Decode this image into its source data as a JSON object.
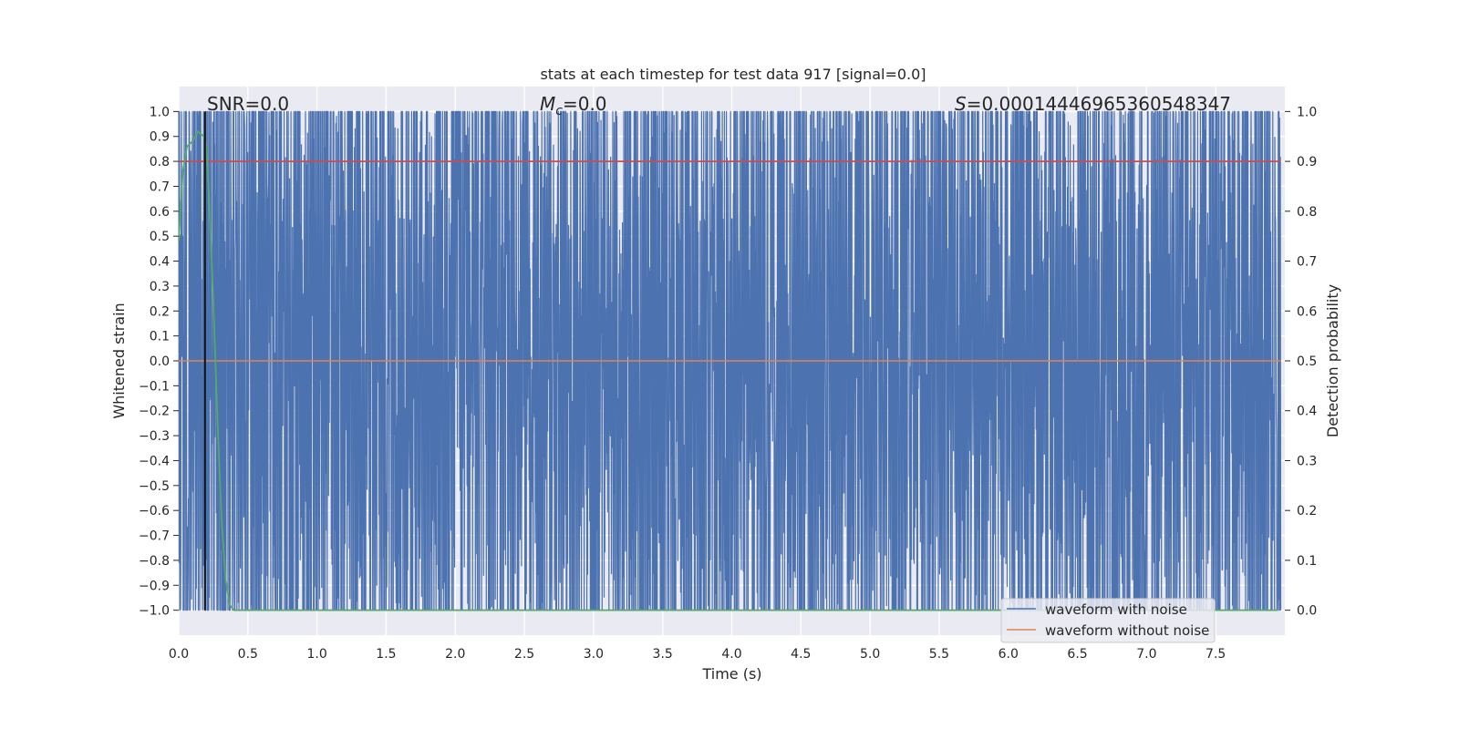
{
  "chart_data": {
    "type": "line",
    "title": "stats at each timestep for test data 917 [signal=0.0]",
    "xlabel": "Time (s)",
    "ylabel": "Whitened strain",
    "y2label": "Detection probability",
    "xlim": [
      0.0,
      8.0
    ],
    "ylim": [
      -1.1,
      1.1
    ],
    "y2lim": [
      -0.05,
      1.05
    ],
    "xticks": [
      "0.0",
      "0.5",
      "1.0",
      "1.5",
      "2.0",
      "2.5",
      "3.0",
      "3.5",
      "4.0",
      "4.5",
      "5.0",
      "5.5",
      "6.0",
      "6.5",
      "7.0",
      "7.5"
    ],
    "yticks": [
      "1.0",
      "0.9",
      "0.8",
      "0.7",
      "0.6",
      "0.5",
      "0.4",
      "0.3",
      "0.2",
      "0.1",
      "0.0",
      "−0.1",
      "−0.2",
      "−0.3",
      "−0.4",
      "−0.5",
      "−0.6",
      "−0.7",
      "−0.8",
      "−0.9",
      "−1.0"
    ],
    "y2ticks": [
      "1.0",
      "0.9",
      "0.8",
      "0.7",
      "0.6",
      "0.5",
      "0.4",
      "0.3",
      "0.2",
      "0.1",
      "0.0"
    ],
    "annotations": {
      "snr": "SNR=0.0",
      "mc_symbol": "M",
      "mc_sub": "c",
      "mc_value": "=0.0",
      "s_symbol": "S",
      "s_value": "=0.00014446965360548347"
    },
    "grid": true,
    "legend_position": "lower right",
    "series": [
      {
        "name": "waveform with noise",
        "color": "#4c72b0",
        "description_range": [
          -1.0,
          1.0
        ]
      },
      {
        "name": "waveform without noise",
        "color": "#dd8452",
        "values_constant": 0.0
      },
      {
        "color": "#55a868",
        "axis": "right",
        "x": [
          0.0,
          0.03,
          0.06,
          0.1,
          0.14,
          0.18,
          0.2,
          0.22,
          0.25,
          0.28,
          0.31,
          0.34,
          0.37,
          0.4,
          0.5,
          1.0,
          2.0,
          3.0,
          4.0,
          5.0,
          6.0,
          7.0,
          7.95
        ],
        "values": [
          0.74,
          0.88,
          0.93,
          0.94,
          0.96,
          0.95,
          0.93,
          0.82,
          0.62,
          0.38,
          0.18,
          0.06,
          0.01,
          0.0,
          0.0,
          0.0,
          0.0,
          0.0,
          0.0,
          0.0,
          0.0,
          0.0,
          0.0
        ]
      }
    ],
    "threshold_y2": 0.9,
    "threshold_color": "#c44e52",
    "marker_x": 0.19,
    "marker_color": "#111111",
    "colors": {
      "axes_bg": "#eaeaf2",
      "grid": "#ffffff"
    }
  }
}
